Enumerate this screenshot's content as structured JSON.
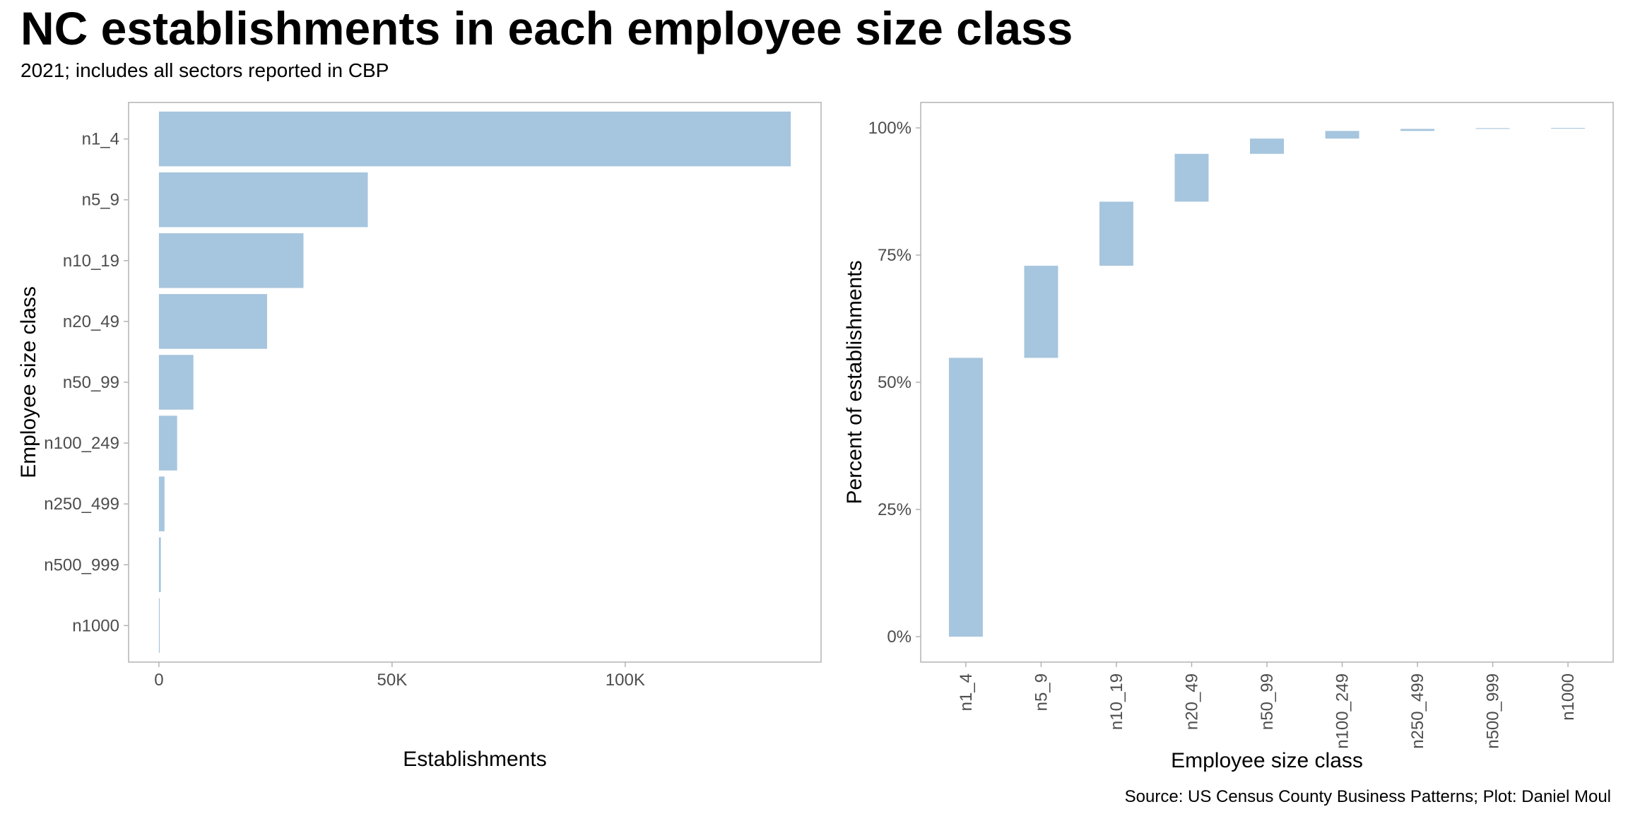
{
  "title": "NC establishments in each employee size class",
  "subtitle": "2021; includes all sectors reported in CBP",
  "caption": "Source: US Census County Business Patterns; Plot: Daniel Moul",
  "colors": {
    "bar": "#a6c5de",
    "panel_border": "#b3b3b3",
    "tick_text": "#4d4d4d"
  },
  "chart_data": [
    {
      "type": "bar",
      "orientation": "horizontal",
      "categories": [
        "n1_4",
        "n5_9",
        "n10_19",
        "n20_49",
        "n50_99",
        "n100_249",
        "n250_499",
        "n500_999",
        "n1000"
      ],
      "values": [
        135500,
        44800,
        31000,
        23200,
        7400,
        3900,
        1200,
        420,
        180
      ],
      "xlabel": "Establishments",
      "ylabel": "Employee size class",
      "xticks": [
        0,
        50000,
        100000
      ],
      "xtick_labels": [
        "0",
        "50K",
        "100K"
      ],
      "xlim": [
        -6500,
        142000
      ],
      "grid": false
    },
    {
      "type": "bar",
      "subtype": "waterfall",
      "categories": [
        "n1_4",
        "n5_9",
        "n10_19",
        "n20_49",
        "n50_99",
        "n100_249",
        "n250_499",
        "n500_999",
        "n1000"
      ],
      "cumulative_start": [
        0,
        54.8,
        72.9,
        85.5,
        94.9,
        97.9,
        99.4,
        99.8,
        99.95
      ],
      "cumulative_end": [
        54.8,
        72.9,
        85.5,
        94.9,
        97.9,
        99.4,
        99.8,
        99.95,
        100.0
      ],
      "xlabel": "Employee size class",
      "ylabel": "Percent of establishments",
      "yticks": [
        0,
        25,
        50,
        75,
        100
      ],
      "ytick_labels": [
        "0%",
        "25%",
        "50%",
        "75%",
        "100%"
      ],
      "ylim": [
        -5,
        105
      ],
      "grid": false
    }
  ]
}
